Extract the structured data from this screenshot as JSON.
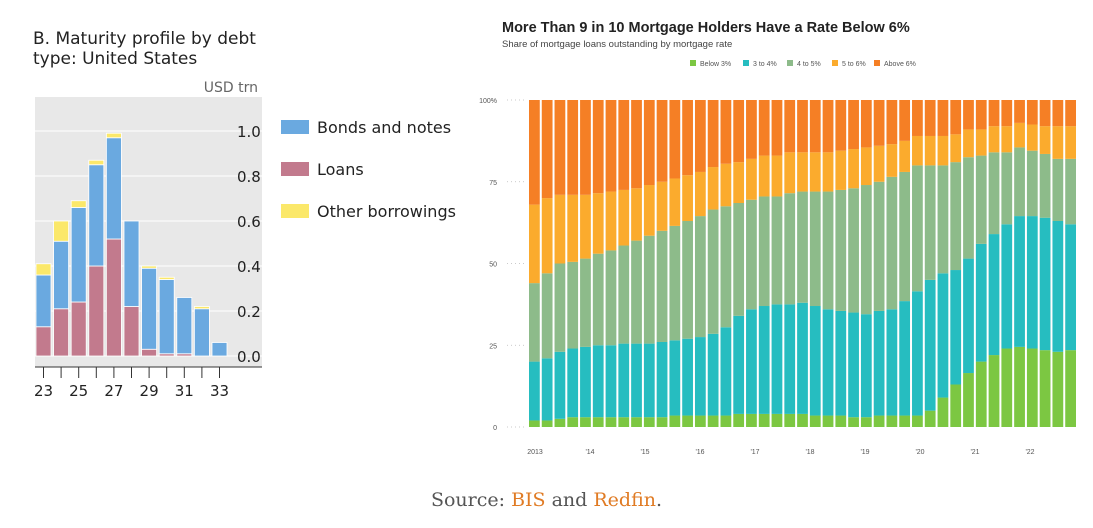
{
  "charts": {
    "left": {
      "title_line1": "B. Maturity profile by debt",
      "title_line2": "type: United States"
    },
    "right": {
      "title": "More Than 9 in 10 Mortgage Holders Have a Rate Below 6%",
      "subtitle": "Share of mortgage loans outstanding by mortgage rate"
    }
  },
  "source": {
    "prefix": "Source: ",
    "link1": "BIS",
    "middle": " and ",
    "link2": "Redfin",
    "suffix": "."
  },
  "chart_data": [
    {
      "type": "bar",
      "stacked": true,
      "title": "B. Maturity profile by debt type: United States",
      "ylabel": "USD trn",
      "ylim": [
        0,
        1.0
      ],
      "yticks": [
        "0.0",
        "0.2",
        "0.4",
        "0.6",
        "0.8",
        "1.0"
      ],
      "categories": [
        "23",
        "24",
        "25",
        "26",
        "27",
        "28",
        "29",
        "30",
        "31",
        "32",
        "33"
      ],
      "xtick_labels": [
        "23",
        "25",
        "27",
        "29",
        "31",
        "33"
      ],
      "grid": true,
      "legend_position": "right",
      "colors": [
        "#c27a8d",
        "#6aa9e0",
        "#fbe86a"
      ],
      "series": [
        {
          "name": "Loans",
          "values": [
            0.13,
            0.21,
            0.24,
            0.4,
            0.52,
            0.22,
            0.03,
            0.01,
            0.01,
            0.0,
            0.0
          ]
        },
        {
          "name": "Bonds and notes",
          "values": [
            0.23,
            0.3,
            0.42,
            0.45,
            0.45,
            0.38,
            0.36,
            0.33,
            0.25,
            0.21,
            0.06
          ]
        },
        {
          "name": "Other borrowings",
          "values": [
            0.05,
            0.09,
            0.03,
            0.02,
            0.02,
            0.0,
            0.01,
            0.01,
            0.0,
            0.01,
            0.0
          ]
        }
      ]
    },
    {
      "type": "bar",
      "stacked": true,
      "title": "More Than 9 in 10 Mortgage Holders Have a Rate Below 6%",
      "subtitle": "Share of mortgage loans outstanding by mortgage rate",
      "ylim": [
        0,
        100
      ],
      "ytick_labels": [
        "0",
        "25",
        "50",
        "75",
        "100%"
      ],
      "xtick_labels": [
        "2013",
        "'14",
        "'15",
        "'16",
        "'17",
        "'18",
        "'19",
        "'20",
        "'21",
        "'22"
      ],
      "legend_position": "top-right",
      "grid": false,
      "colors": [
        "#7cc742",
        "#26bdc0",
        "#8dbb8a",
        "#fbab2d",
        "#f57f25"
      ],
      "series_names": [
        "Below 3%",
        "3 to 4%",
        "4 to 5%",
        "5 to 6%",
        "Above 6%"
      ],
      "bars": [
        [
          2,
          18,
          24,
          24,
          32
        ],
        [
          2,
          19,
          26,
          23,
          30
        ],
        [
          2.5,
          20.5,
          27,
          21,
          29
        ],
        [
          3,
          21,
          26.5,
          20.5,
          29
        ],
        [
          3,
          21.5,
          27,
          19.5,
          29
        ],
        [
          3,
          22,
          28,
          18.5,
          28.5
        ],
        [
          3,
          22,
          29,
          18,
          28
        ],
        [
          3,
          22.5,
          30,
          17,
          27.5
        ],
        [
          3,
          22.5,
          31.5,
          16,
          27
        ],
        [
          3,
          22.5,
          33,
          15.5,
          26
        ],
        [
          3,
          23,
          34,
          15,
          25
        ],
        [
          3.5,
          23,
          35,
          14.5,
          24
        ],
        [
          3.5,
          23.5,
          36,
          14,
          23
        ],
        [
          3.5,
          24,
          37,
          13.5,
          22
        ],
        [
          3.5,
          25,
          38,
          13,
          20.5
        ],
        [
          3.5,
          27,
          37,
          13,
          19.5
        ],
        [
          4,
          30,
          34.5,
          12.5,
          19
        ],
        [
          4,
          32,
          33.5,
          12.5,
          18
        ],
        [
          4,
          33,
          33.5,
          12.5,
          17
        ],
        [
          4,
          33.5,
          33,
          12.5,
          17
        ],
        [
          4,
          33.5,
          34,
          12.5,
          16
        ],
        [
          4,
          34,
          34,
          12,
          16
        ],
        [
          3.5,
          33.5,
          35,
          12,
          16
        ],
        [
          3.5,
          32.5,
          36,
          12,
          16
        ],
        [
          3.5,
          32,
          37,
          12,
          15.5
        ],
        [
          3,
          32,
          38,
          12,
          15
        ],
        [
          3,
          31.5,
          39.5,
          11.5,
          14.5
        ],
        [
          3.5,
          32,
          39.5,
          11,
          14
        ],
        [
          3.5,
          32.5,
          40.5,
          10,
          13.5
        ],
        [
          3.5,
          35,
          39.5,
          9.5,
          12.5
        ],
        [
          3.5,
          38,
          38.5,
          9,
          11
        ],
        [
          5,
          40,
          35,
          9,
          11
        ],
        [
          9,
          38,
          33,
          9,
          11
        ],
        [
          13,
          35,
          33,
          8.5,
          10.5
        ],
        [
          16.5,
          35,
          31,
          8.5,
          9
        ],
        [
          20,
          36,
          27,
          8,
          9
        ],
        [
          22,
          37,
          25,
          8,
          8
        ],
        [
          24,
          38,
          22,
          8,
          8
        ],
        [
          24.5,
          40,
          21,
          7.5,
          7
        ],
        [
          24,
          40.5,
          20,
          8,
          7.5
        ],
        [
          23.5,
          40.5,
          19.5,
          8.5,
          8
        ],
        [
          23,
          40,
          19,
          10,
          8
        ],
        [
          23.5,
          38.5,
          20,
          10,
          8
        ]
      ]
    }
  ]
}
